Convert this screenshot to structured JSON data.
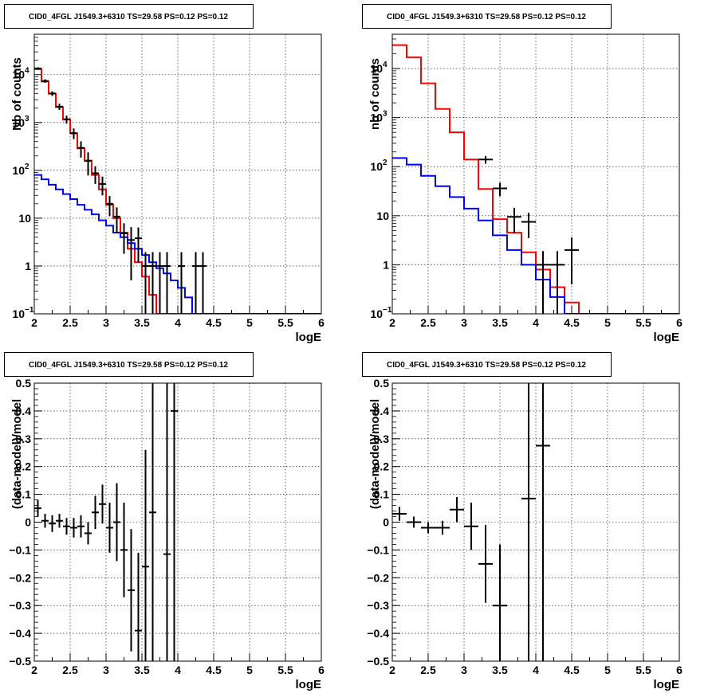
{
  "chart_data": [
    {
      "type": "line",
      "title": "CID0_4FGL J1549.3+6310 TS=29.58 PS=0.12 PS=0.12",
      "xlabel": "logE",
      "ylabel": "Nb of counts",
      "yscale": "log",
      "xlim": [
        2,
        6
      ],
      "ylim": [
        0.1,
        70000
      ],
      "grid": true,
      "x_ticks": [
        "2",
        "2.5",
        "3",
        "3.5",
        "4",
        "4.5",
        "5",
        "5.5",
        "6"
      ],
      "y_ticks": [
        {
          "value": 0.1,
          "label": "10",
          "exp": "−1"
        },
        {
          "value": 1,
          "label": "1",
          "exp": ""
        },
        {
          "value": 10,
          "label": "10",
          "exp": ""
        },
        {
          "value": 100,
          "label": "10",
          "exp": "2"
        },
        {
          "value": 1000,
          "label": "10",
          "exp": "3"
        },
        {
          "value": 10000,
          "label": "10",
          "exp": "4"
        }
      ],
      "bin_edges": [
        2.0,
        2.1,
        2.2,
        2.3,
        2.4,
        2.5,
        2.6,
        2.7,
        2.8,
        2.9,
        3.0,
        3.1,
        3.2,
        3.3,
        3.4,
        3.5,
        3.6,
        3.7,
        3.8,
        3.9,
        4.0,
        4.1,
        4.2,
        4.3,
        4.4,
        4.5,
        4.6,
        4.7,
        4.8,
        4.9,
        5.0,
        5.1,
        5.2,
        5.3,
        5.4,
        5.5,
        5.6,
        5.7,
        5.8,
        5.9,
        6.0
      ],
      "series": [
        {
          "color": "#ff0000",
          "kind": "hist",
          "values": [
            13000,
            7200,
            4000,
            2100,
            1150,
            590,
            290,
            160,
            80,
            40,
            19,
            10,
            5,
            2.3,
            1.2,
            0.6,
            0.25,
            0.1,
            0.1,
            0.1,
            0.1,
            0.1,
            0.1,
            0.1,
            0.1,
            0.1,
            0.1,
            0.1,
            0.1,
            0.1,
            0.1,
            0.1,
            0.1,
            0.1,
            0.1,
            0.1,
            0.1,
            0.1,
            0.1,
            0.1
          ]
        },
        {
          "color": "#0000ff",
          "kind": "hist",
          "values": [
            80,
            65,
            50,
            40,
            32,
            25,
            19,
            15,
            12,
            9,
            7,
            5,
            4,
            3,
            2.3,
            1.7,
            1.2,
            0.9,
            0.7,
            0.5,
            0.35,
            0.22,
            0.1,
            0.1,
            0.1,
            0.1,
            0.1,
            0.1,
            0.1,
            0.1,
            0.1,
            0.1,
            0.1,
            0.1,
            0.1,
            0.1,
            0.1,
            0.1,
            0.1,
            0.1
          ]
        },
        {
          "color": "#000000",
          "kind": "points",
          "points": [
            [
              2.05,
              13500,
              800
            ],
            [
              2.15,
              7400,
              600
            ],
            [
              2.25,
              4050,
              450
            ],
            [
              2.35,
              2150,
              320
            ],
            [
              2.45,
              1170,
              220
            ],
            [
              2.55,
              600,
              150
            ],
            [
              2.65,
              295,
              110
            ],
            [
              2.75,
              158,
              80
            ],
            [
              2.85,
              87,
              35
            ],
            [
              2.95,
              52,
              22
            ],
            [
              3.05,
              20,
              9
            ],
            [
              3.15,
              10.8,
              6
            ],
            [
              3.25,
              4.8,
              3
            ],
            [
              3.35,
              3.5,
              3
            ],
            [
              3.45,
              3.8,
              2.6
            ],
            [
              3.55,
              1.0,
              0.95
            ],
            [
              3.65,
              1.0,
              0.95
            ],
            [
              3.75,
              1.0,
              0.95
            ],
            [
              3.85,
              1.0,
              0.95
            ],
            [
              4.05,
              1.0,
              0.95
            ],
            [
              4.25,
              1.0,
              0.95
            ],
            [
              4.35,
              1.0,
              0.95
            ]
          ]
        }
      ]
    },
    {
      "type": "line",
      "title": "CID0_4FGL J1549.3+6310 TS=29.58 PS=0.12 PS=0.12",
      "xlabel": "logE",
      "ylabel": "nb of counts",
      "yscale": "log",
      "xlim": [
        2,
        6
      ],
      "ylim": [
        0.1,
        50000
      ],
      "grid": true,
      "x_ticks": [
        "2",
        "2.5",
        "3",
        "3.5",
        "4",
        "4.5",
        "5",
        "5.5",
        "6"
      ],
      "y_ticks": [
        {
          "value": 0.1,
          "label": "10",
          "exp": "−1"
        },
        {
          "value": 1,
          "label": "1",
          "exp": ""
        },
        {
          "value": 10,
          "label": "10",
          "exp": ""
        },
        {
          "value": 100,
          "label": "10",
          "exp": "2"
        },
        {
          "value": 1000,
          "label": "10",
          "exp": "3"
        },
        {
          "value": 10000,
          "label": "10",
          "exp": "4"
        }
      ],
      "bin_edges": [
        2.0,
        2.2,
        2.4,
        2.6,
        2.8,
        3.0,
        3.2,
        3.4,
        3.6,
        3.8,
        4.0,
        4.2,
        4.4,
        4.6,
        4.8,
        5.0,
        5.2,
        5.4,
        5.6,
        5.8,
        6.0
      ],
      "series": [
        {
          "color": "#ff0000",
          "kind": "hist",
          "values": [
            30000,
            17000,
            5000,
            1500,
            500,
            140,
            35,
            8.5,
            4.5,
            1.8,
            0.8,
            0.35,
            0.17,
            0.1,
            0.1,
            0.1,
            0.1,
            0.1,
            0.1,
            0.1
          ]
        },
        {
          "color": "#0000ff",
          "kind": "hist",
          "values": [
            150,
            110,
            65,
            40,
            24,
            14,
            8,
            4,
            2,
            1,
            0.5,
            0.22,
            0.1,
            0.1,
            0.1,
            0.1,
            0.1,
            0.1,
            0.1,
            0.1
          ]
        },
        {
          "color": "#000000",
          "kind": "points",
          "points": [
            [
              3.3,
              140,
              25
            ],
            [
              3.5,
              36,
              11
            ],
            [
              3.7,
              9.5,
              5
            ],
            [
              3.9,
              7.5,
              4
            ],
            [
              4.1,
              1.0,
              0.9
            ],
            [
              4.3,
              1.0,
              0.9
            ],
            [
              4.5,
              2.0,
              1.6
            ]
          ]
        }
      ]
    },
    {
      "type": "scatter",
      "title": "CID0_4FGL J1549.3+6310 TS=29.58 PS=0.12 PS=0.12",
      "xlabel": "logE",
      "ylabel": "(data-model)/model",
      "yscale": "linear",
      "xlim": [
        2,
        6
      ],
      "ylim": [
        -0.5,
        0.5
      ],
      "grid": true,
      "x_ticks": [
        "2",
        "2.5",
        "3",
        "3.5",
        "4",
        "4.5",
        "5",
        "5.5",
        "6"
      ],
      "y_ticks": [
        {
          "value": -0.5,
          "label": "−0.5",
          "exp": ""
        },
        {
          "value": -0.4,
          "label": "−0.4",
          "exp": ""
        },
        {
          "value": -0.3,
          "label": "−0.3",
          "exp": ""
        },
        {
          "value": -0.2,
          "label": "−0.2",
          "exp": ""
        },
        {
          "value": -0.1,
          "label": "−0.1",
          "exp": ""
        },
        {
          "value": 0,
          "label": "0",
          "exp": ""
        },
        {
          "value": 0.1,
          "label": "0.1",
          "exp": ""
        },
        {
          "value": 0.2,
          "label": "0.2",
          "exp": ""
        },
        {
          "value": 0.3,
          "label": "0.3",
          "exp": ""
        },
        {
          "value": 0.4,
          "label": "0.4",
          "exp": ""
        },
        {
          "value": 0.5,
          "label": "0.5",
          "exp": ""
        }
      ],
      "half_width": 0.05,
      "series": [
        {
          "color": "#000000",
          "kind": "points",
          "points": [
            [
              2.05,
              0.05,
              0.03
            ],
            [
              2.15,
              0.005,
              0.025
            ],
            [
              2.25,
              -0.005,
              0.03
            ],
            [
              2.35,
              0.005,
              0.025
            ],
            [
              2.45,
              -0.015,
              0.03
            ],
            [
              2.55,
              -0.02,
              0.035
            ],
            [
              2.65,
              -0.015,
              0.04
            ],
            [
              2.75,
              -0.04,
              0.04
            ],
            [
              2.85,
              0.035,
              0.06
            ],
            [
              2.95,
              0.065,
              0.07
            ],
            [
              3.05,
              -0.02,
              0.09
            ],
            [
              3.15,
              0.0,
              0.14
            ],
            [
              3.25,
              -0.1,
              0.17
            ],
            [
              3.35,
              -0.245,
              0.22
            ],
            [
              3.45,
              -0.39,
              0.28
            ],
            [
              3.55,
              -0.16,
              0.42
            ],
            [
              3.65,
              0.035,
              0.75
            ],
            [
              3.85,
              -0.115,
              0.9
            ],
            [
              3.95,
              0.4,
              1.0
            ]
          ]
        }
      ]
    },
    {
      "type": "scatter",
      "title": "CID0_4FGL J1549.3+6310 TS=29.58 PS=0.12 PS=0.12",
      "xlabel": "logE",
      "ylabel": "(data-model)/model",
      "yscale": "linear",
      "xlim": [
        2,
        6
      ],
      "ylim": [
        -0.5,
        0.5
      ],
      "grid": true,
      "x_ticks": [
        "2",
        "2.5",
        "3",
        "3.5",
        "4",
        "4.5",
        "5",
        "5.5",
        "6"
      ],
      "y_ticks": [
        {
          "value": -0.5,
          "label": "−0.5",
          "exp": ""
        },
        {
          "value": -0.4,
          "label": "−0.4",
          "exp": ""
        },
        {
          "value": -0.3,
          "label": "−0.3",
          "exp": ""
        },
        {
          "value": -0.2,
          "label": "−0.2",
          "exp": ""
        },
        {
          "value": -0.1,
          "label": "−0.1",
          "exp": ""
        },
        {
          "value": 0,
          "label": "0",
          "exp": ""
        },
        {
          "value": 0.1,
          "label": "0.1",
          "exp": ""
        },
        {
          "value": 0.2,
          "label": "0.2",
          "exp": ""
        },
        {
          "value": 0.3,
          "label": "0.3",
          "exp": ""
        },
        {
          "value": 0.4,
          "label": "0.4",
          "exp": ""
        },
        {
          "value": 0.5,
          "label": "0.5",
          "exp": ""
        }
      ],
      "half_width": 0.1,
      "series": [
        {
          "color": "#000000",
          "kind": "points",
          "points": [
            [
              2.1,
              0.03,
              0.025
            ],
            [
              2.3,
              0.0,
              0.02
            ],
            [
              2.5,
              -0.02,
              0.02
            ],
            [
              2.7,
              -0.02,
              0.025
            ],
            [
              2.9,
              0.045,
              0.045
            ],
            [
              3.1,
              -0.015,
              0.085
            ],
            [
              3.3,
              -0.15,
              0.14
            ],
            [
              3.5,
              -0.3,
              0.22
            ],
            [
              3.9,
              0.085,
              0.9
            ],
            [
              4.1,
              0.275,
              0.9
            ]
          ]
        }
      ]
    }
  ]
}
